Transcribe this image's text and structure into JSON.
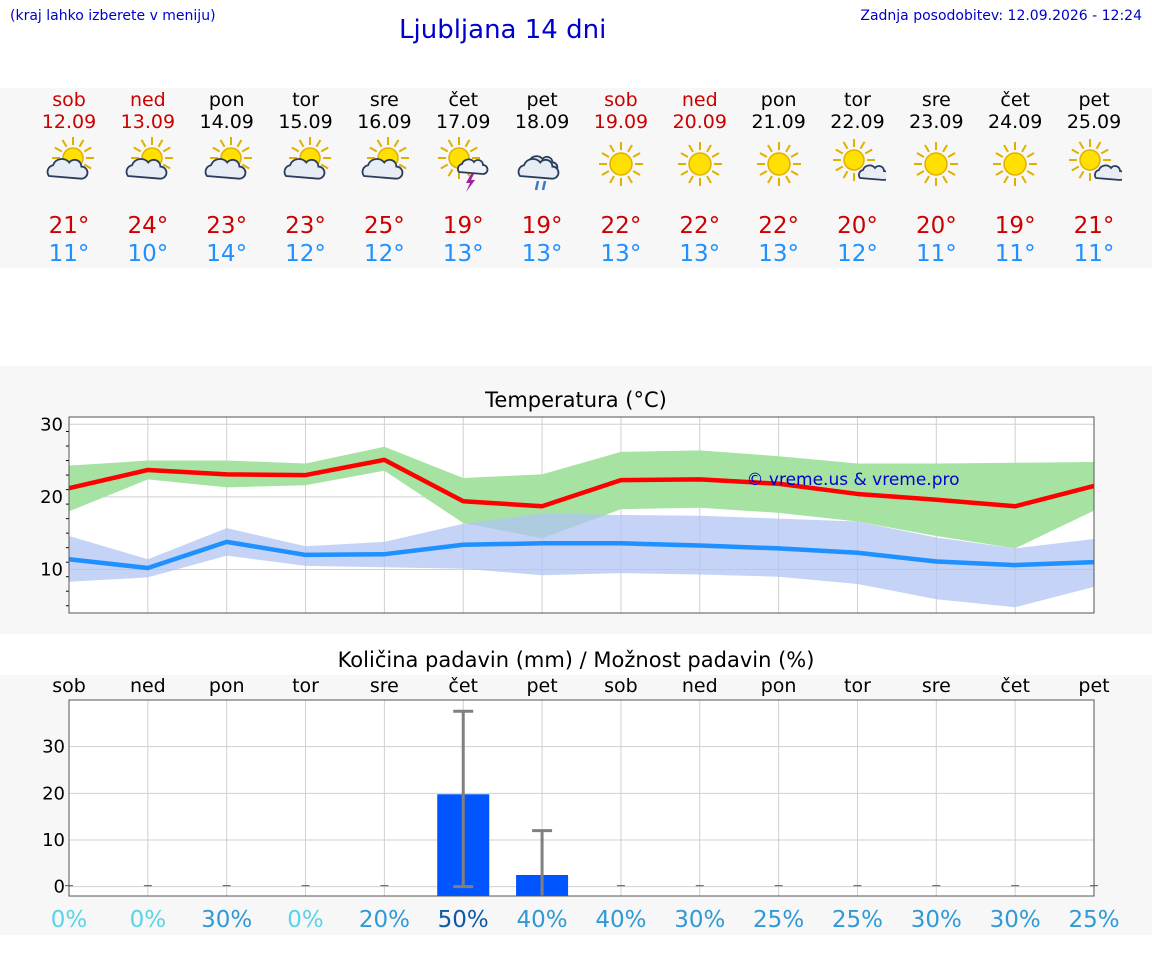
{
  "header": {
    "left_note": "(kraj lahko izberete v meniju)",
    "title": "Ljubljana 14 dni",
    "updated": "Zadnja posodobitev: 12.09.2026 - 12:24"
  },
  "days": [
    {
      "name": "sob",
      "date": "12.09",
      "weekend": true,
      "icon": "sun-cloud-icon",
      "tmax": "21°",
      "tmin": "11°"
    },
    {
      "name": "ned",
      "date": "13.09",
      "weekend": true,
      "icon": "sun-cloud-icon",
      "tmax": "24°",
      "tmin": "10°"
    },
    {
      "name": "pon",
      "date": "14.09",
      "weekend": false,
      "icon": "sun-cloud-icon",
      "tmax": "23°",
      "tmin": "14°"
    },
    {
      "name": "tor",
      "date": "15.09",
      "weekend": false,
      "icon": "sun-cloud-icon",
      "tmax": "23°",
      "tmin": "12°"
    },
    {
      "name": "sre",
      "date": "16.09",
      "weekend": false,
      "icon": "sun-cloud-icon",
      "tmax": "25°",
      "tmin": "12°"
    },
    {
      "name": "čet",
      "date": "17.09",
      "weekend": false,
      "icon": "sun-storm-icon",
      "tmax": "19°",
      "tmin": "13°"
    },
    {
      "name": "pet",
      "date": "18.09",
      "weekend": false,
      "icon": "rain-cloud-icon",
      "tmax": "19°",
      "tmin": "13°"
    },
    {
      "name": "sob",
      "date": "19.09",
      "weekend": true,
      "icon": "sun-icon",
      "tmax": "22°",
      "tmin": "13°"
    },
    {
      "name": "ned",
      "date": "20.09",
      "weekend": true,
      "icon": "sun-icon",
      "tmax": "22°",
      "tmin": "13°"
    },
    {
      "name": "pon",
      "date": "21.09",
      "weekend": false,
      "icon": "sun-icon",
      "tmax": "22°",
      "tmin": "13°"
    },
    {
      "name": "tor",
      "date": "22.09",
      "weekend": false,
      "icon": "sun-small-cloud-icon",
      "tmax": "20°",
      "tmin": "12°"
    },
    {
      "name": "sre",
      "date": "23.09",
      "weekend": false,
      "icon": "sun-icon",
      "tmax": "20°",
      "tmin": "11°"
    },
    {
      "name": "čet",
      "date": "24.09",
      "weekend": false,
      "icon": "sun-icon",
      "tmax": "19°",
      "tmin": "11°"
    },
    {
      "name": "pet",
      "date": "25.09",
      "weekend": false,
      "icon": "sun-small-cloud-icon",
      "tmax": "21°",
      "tmin": "11°"
    }
  ],
  "chart_data": [
    {
      "type": "line",
      "title": "Temperatura (°C)",
      "watermark": "© vreme.us & vreme.pro",
      "ylim": [
        4,
        31
      ],
      "yticks": [
        10,
        20,
        30
      ],
      "grid": true,
      "x": [
        "12.09",
        "13.09",
        "14.09",
        "15.09",
        "16.09",
        "17.09",
        "18.09",
        "19.09",
        "20.09",
        "21.09",
        "22.09",
        "23.09",
        "24.09",
        "25.09"
      ],
      "series": [
        {
          "values": [
            21.2,
            23.7,
            23.1,
            23.0,
            25.1,
            19.4,
            18.7,
            22.3,
            22.4,
            21.8,
            20.4,
            19.6,
            18.7,
            21.5
          ],
          "color": "#ff0000",
          "band_low": [
            18.0,
            22.4,
            21.3,
            21.6,
            23.6,
            16.4,
            14.3,
            18.3,
            18.5,
            17.8,
            16.6,
            14.6,
            12.9,
            18.1
          ],
          "band_high": [
            24.3,
            25.0,
            25.0,
            24.6,
            26.9,
            22.6,
            23.1,
            26.2,
            26.4,
            25.6,
            24.6,
            24.6,
            24.7,
            24.8
          ],
          "band_color": "#a6e3a2"
        },
        {
          "values": [
            11.4,
            10.2,
            13.8,
            12.0,
            12.1,
            13.4,
            13.6,
            13.6,
            13.3,
            12.9,
            12.3,
            11.1,
            10.6,
            11.0
          ],
          "color": "#1e90ff",
          "band_low": [
            8.3,
            8.9,
            11.9,
            10.5,
            10.3,
            10.1,
            9.2,
            9.5,
            9.3,
            9.0,
            8.0,
            5.9,
            4.8,
            7.6
          ],
          "band_high": [
            14.6,
            11.4,
            15.7,
            13.2,
            13.8,
            16.3,
            17.7,
            17.5,
            17.4,
            17.0,
            16.6,
            14.4,
            12.9,
            14.2
          ],
          "band_color": "#b0c4f3"
        }
      ]
    },
    {
      "type": "bar",
      "title": "Količina padavin (mm) / Možnost padavin (%)",
      "categories": [
        "sob",
        "ned",
        "pon",
        "tor",
        "sre",
        "čet",
        "pet",
        "sob",
        "ned",
        "pon",
        "tor",
        "sre",
        "čet",
        "pet"
      ],
      "ylim": [
        -2,
        40
      ],
      "yticks": [
        0,
        10,
        20,
        30
      ],
      "values": [
        0,
        0,
        0,
        0,
        0,
        19.8,
        2.5,
        0,
        0,
        0,
        0,
        0,
        0,
        0
      ],
      "error_high": [
        0,
        0,
        0,
        0,
        0,
        37.6,
        12.0,
        0,
        0,
        0,
        0,
        0,
        0,
        0
      ],
      "error_low": [
        0,
        0,
        0,
        0,
        0,
        0,
        -2,
        0,
        0,
        0,
        0,
        0,
        0,
        0
      ],
      "bar_color": "#0055ff",
      "probability": [
        "0%",
        "0%",
        "30%",
        "0%",
        "20%",
        "50%",
        "40%",
        "40%",
        "30%",
        "25%",
        "25%",
        "30%",
        "30%",
        "25%"
      ],
      "probability_colors": [
        "#5bd3e8",
        "#5bd3e8",
        "#2f9ad6",
        "#5bd3e8",
        "#2f9ad6",
        "#0b5aa8",
        "#2f9ad6",
        "#2f9ad6",
        "#2f9ad6",
        "#2f9ad6",
        "#2f9ad6",
        "#2f9ad6",
        "#2f9ad6",
        "#2f9ad6"
      ]
    }
  ]
}
